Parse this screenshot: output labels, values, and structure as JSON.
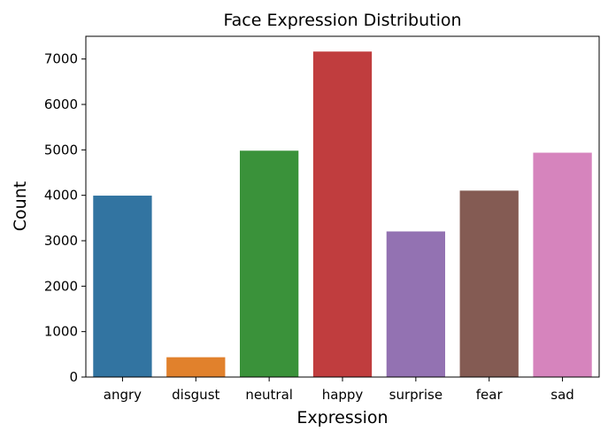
{
  "chart_data": {
    "type": "bar",
    "title": "Face Expression Distribution",
    "xlabel": "Expression",
    "ylabel": "Count",
    "categories": [
      "angry",
      "disgust",
      "neutral",
      "happy",
      "surprise",
      "fear",
      "sad"
    ],
    "values": [
      3993,
      436,
      4982,
      7164,
      3205,
      4103,
      4938
    ],
    "colors": [
      "#3274a1",
      "#e1812c",
      "#3a923a",
      "#c03d3e",
      "#9372b2",
      "#845b53",
      "#d684bd"
    ],
    "ylim": [
      0,
      7500
    ],
    "yticks": [
      0,
      1000,
      2000,
      3000,
      4000,
      5000,
      6000,
      7000
    ],
    "grid": false,
    "legend": "none"
  }
}
